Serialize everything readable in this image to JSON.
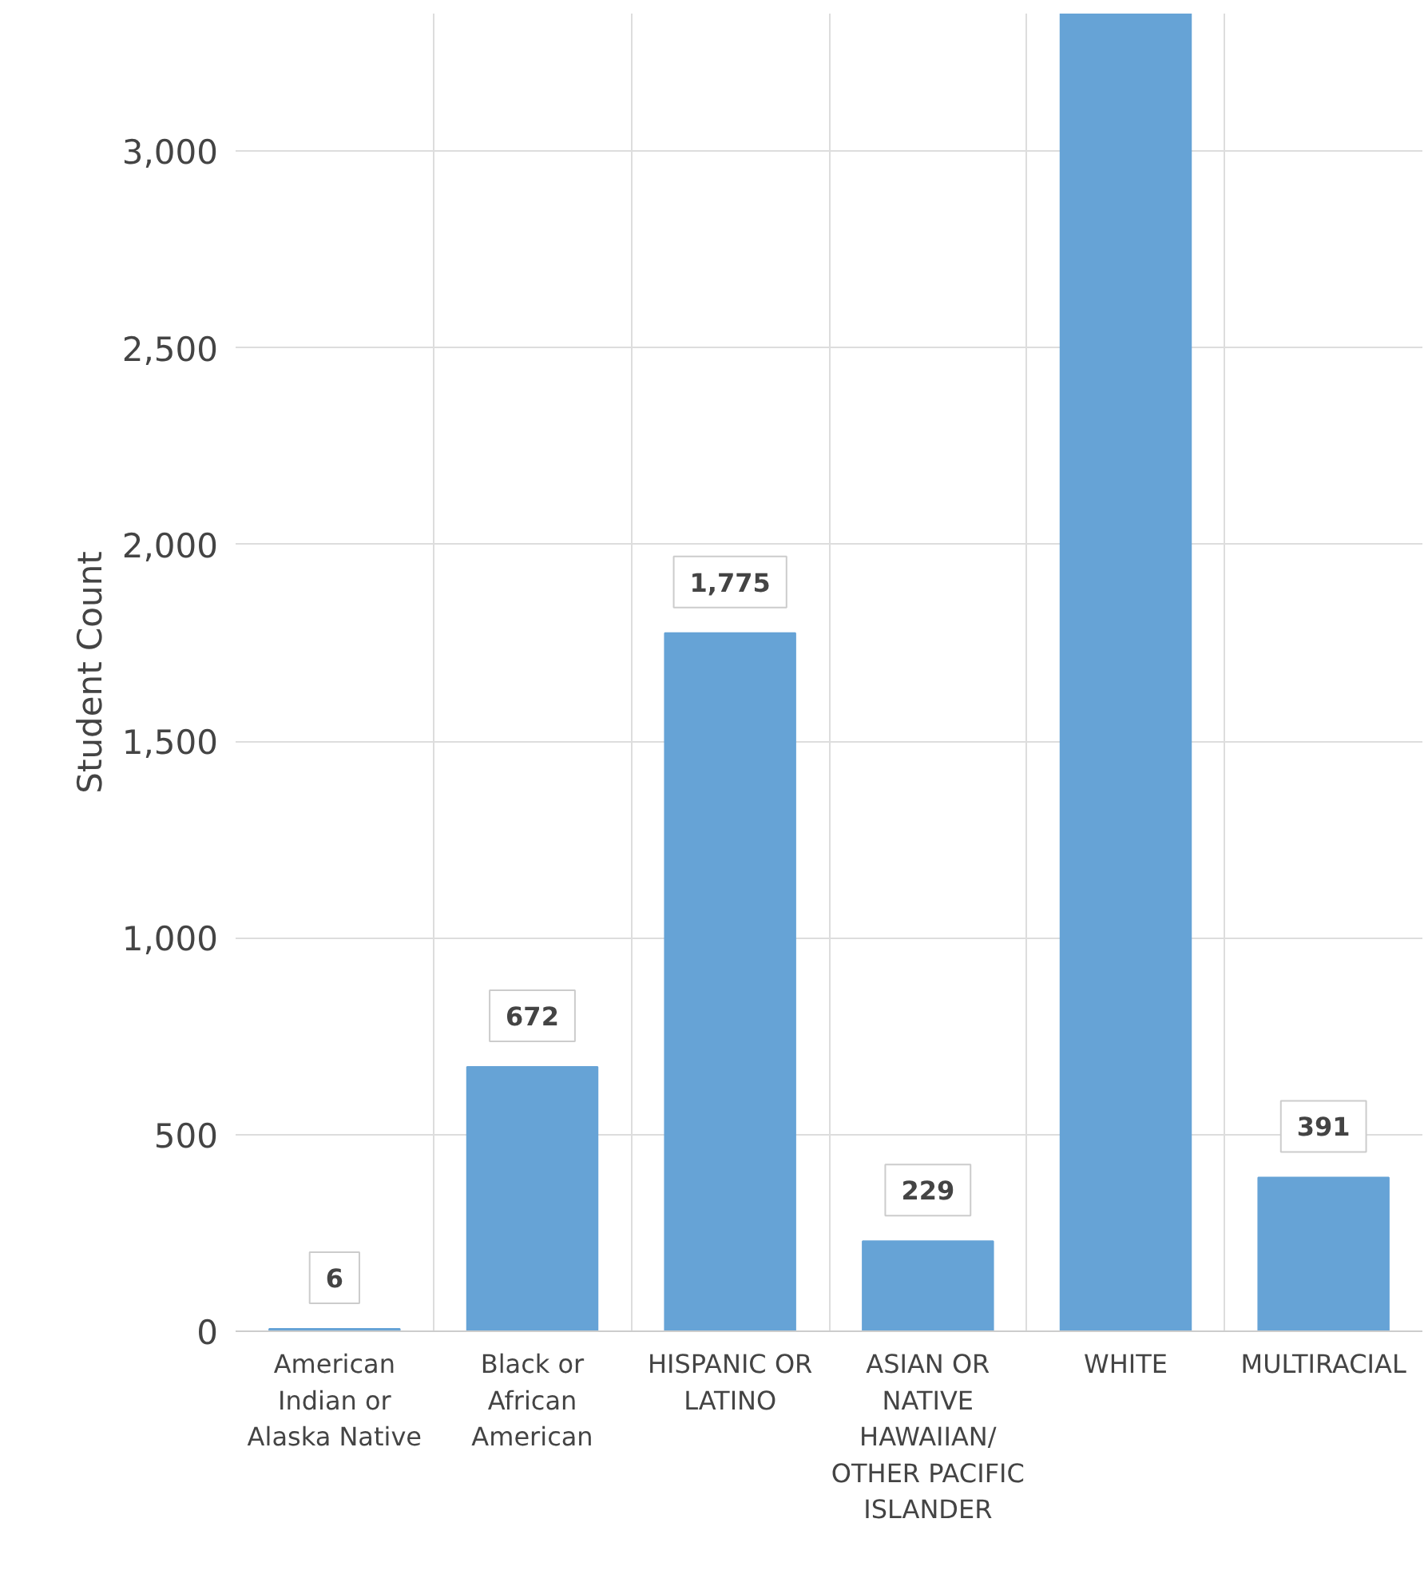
{
  "chart_data": {
    "type": "bar",
    "ylabel": "Student Count",
    "categories": [
      "American Indian or Alaska Native",
      "Black or African American",
      "HISPANIC OR LATINO",
      "ASIAN OR NATIVE HAWAIIAN/ OTHER PACIFIC ISLANDER",
      "WHITE",
      "MULTIRACIAL"
    ],
    "values": [
      6,
      672,
      1775,
      229,
      3350,
      391
    ],
    "value_labels": [
      "6",
      "672",
      "1,775",
      "229",
      null,
      "391"
    ],
    "color": "#66a3d6",
    "ylim": [
      0,
      3350
    ],
    "yticks": [
      {
        "value": 0,
        "label": "0"
      },
      {
        "value": 500,
        "label": "500"
      },
      {
        "value": 1000,
        "label": "1,000"
      },
      {
        "value": 1500,
        "label": "1,500"
      },
      {
        "value": 2000,
        "label": "2,000"
      },
      {
        "value": 2500,
        "label": "2,500"
      },
      {
        "value": 3000,
        "label": "3,000"
      }
    ],
    "grid": true
  }
}
